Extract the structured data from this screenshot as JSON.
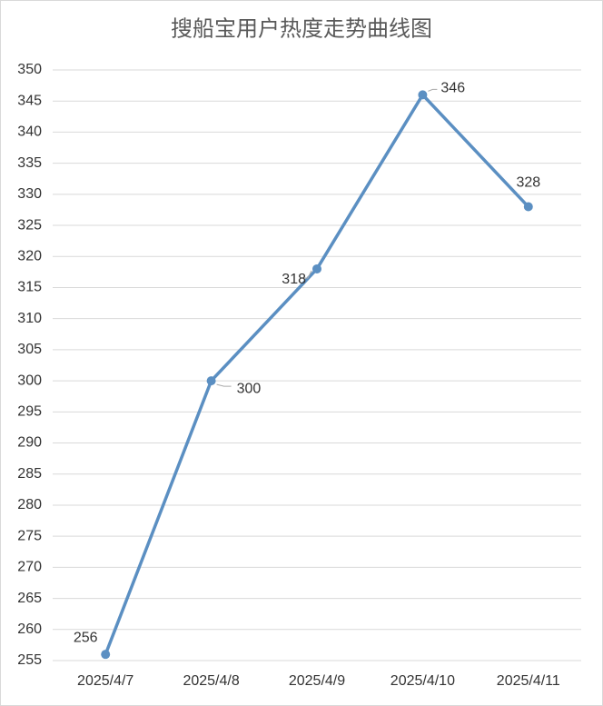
{
  "chart_data": {
    "type": "line",
    "title": "搜船宝用户热度走势曲线图",
    "categories": [
      "2025/4/7",
      "2025/4/8",
      "2025/4/9",
      "2025/4/10",
      "2025/4/11"
    ],
    "values": [
      256,
      300,
      318,
      346,
      328
    ],
    "color": "#5b8fc2",
    "ylim": [
      255,
      350
    ],
    "yticks": [
      255,
      260,
      265,
      270,
      275,
      280,
      285,
      290,
      295,
      300,
      305,
      310,
      315,
      320,
      325,
      330,
      335,
      340,
      345,
      350
    ],
    "grid": true
  }
}
